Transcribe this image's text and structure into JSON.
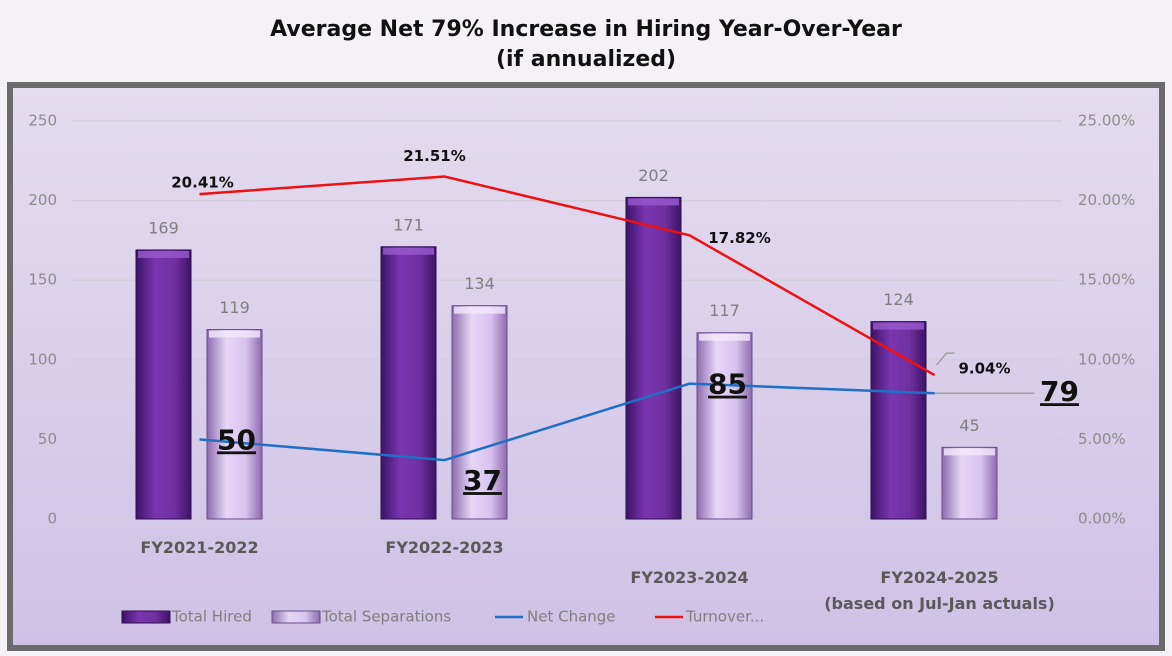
{
  "chart_data": {
    "type": "bar-line",
    "title": "Average Net 79% Increase in Hiring Year-Over-Year",
    "subtitle": "(if annualized)",
    "categories": [
      "FY2021-2022",
      "FY2022-2023",
      "FY2023-2024",
      "FY2024-2025\n(based on Jul-Jan actuals)"
    ],
    "series": [
      {
        "name": "Total Hired",
        "type": "bar",
        "color": "#7030a0",
        "values": [
          169,
          171,
          202,
          124
        ]
      },
      {
        "name": "Total Separations",
        "type": "bar",
        "color": "#d9c3f0",
        "values": [
          119,
          134,
          117,
          45
        ]
      },
      {
        "name": "Net Change",
        "type": "line",
        "color": "#1f6fc5",
        "values": [
          50,
          37,
          85,
          79
        ]
      },
      {
        "name": "Turnover...",
        "type": "line",
        "axis": "y2",
        "color": "#ee1111",
        "values": [
          20.41,
          21.51,
          17.82,
          9.04
        ],
        "value_labels": [
          "20.41%",
          "21.51%",
          "17.82%",
          "9.04%"
        ]
      }
    ],
    "ylim": [
      0,
      250
    ],
    "yticks": [
      0,
      50,
      100,
      150,
      200,
      250
    ],
    "y2lim": [
      0,
      25
    ],
    "y2ticks": [
      {
        "value": 0,
        "label": "0.00%"
      },
      {
        "value": 5,
        "label": "5.00%"
      },
      {
        "value": 10,
        "label": "10.00%"
      },
      {
        "value": 15,
        "label": "15.00%"
      },
      {
        "value": 20,
        "label": "20.00%"
      },
      {
        "value": 25,
        "label": "25.00%"
      }
    ],
    "grid": true,
    "legend": "bottom"
  }
}
